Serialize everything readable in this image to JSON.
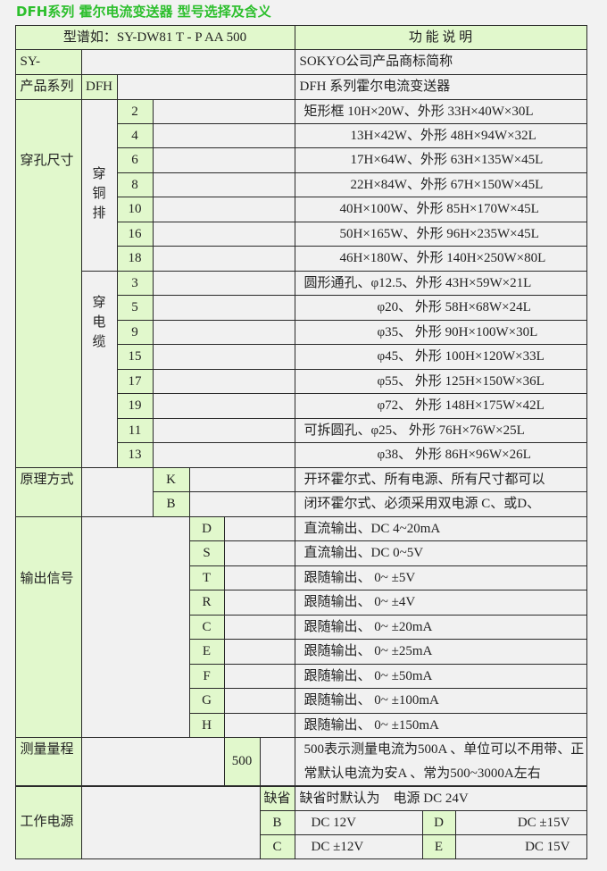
{
  "title": "DFH系列 霍尔电流变送器 型号选择及含义",
  "colors": {
    "title": "#2cbf2c",
    "label_cell": "#e1f8cc",
    "value_cell": "#f1f1f1"
  },
  "header": {
    "model_example": "型谱如：SY-DW81 T - P AA 500",
    "function": "功 能 说 明"
  },
  "sy": {
    "code": "SY-",
    "desc": "SOKYO公司产品商标简称"
  },
  "series": {
    "label": "产品系列",
    "code": "DFH",
    "desc": "DFH 系列霍尔电流变送器"
  },
  "hole": {
    "label": "穿孔尺寸",
    "busbar": {
      "label": "穿铜排",
      "rows": [
        {
          "code": "2",
          "desc": "矩形框 10H×20W、外形 33H×40W×30L"
        },
        {
          "code": "4",
          "desc": "13H×42W、外形 48H×94W×32L"
        },
        {
          "code": "6",
          "desc": "17H×64W、外形 63H×135W×45L"
        },
        {
          "code": "8",
          "desc": "22H×84W、外形 67H×150W×45L"
        },
        {
          "code": "10",
          "desc": "40H×100W、外形 85H×170W×45L"
        },
        {
          "code": "16",
          "desc": "50H×165W、外形 96H×235W×45L"
        },
        {
          "code": "18",
          "desc": "46H×180W、外形 140H×250W×80L"
        }
      ]
    },
    "cable": {
      "label": "穿电缆",
      "rows": [
        {
          "code": "3",
          "desc": "圆形通孔、φ12.5、外形 43H×59W×21L"
        },
        {
          "code": "5",
          "desc": "φ20、  外形 58H×68W×24L"
        },
        {
          "code": "9",
          "desc": "φ35、  外形 90H×100W×30L"
        },
        {
          "code": "15",
          "desc": "φ45、  外形 100H×120W×33L"
        },
        {
          "code": "17",
          "desc": "φ55、  外形 125H×150W×36L"
        },
        {
          "code": "19",
          "desc": "φ72、  外形 148H×175W×42L"
        },
        {
          "code": "11",
          "desc": "可拆圆孔、φ25、  外形 76H×76W×25L"
        },
        {
          "code": "13",
          "desc": "φ38、  外形 86H×96W×26L"
        }
      ]
    }
  },
  "principle": {
    "label": "原理方式",
    "rows": [
      {
        "code": "K",
        "desc": "开环霍尔式、所有电源、所有尺寸都可以"
      },
      {
        "code": "B",
        "desc": "闭环霍尔式、必须采用双电源 C、或D、"
      }
    ]
  },
  "output": {
    "label": "输出信号",
    "rows": [
      {
        "code": "D",
        "desc": "直流输出、DC 4~20mA"
      },
      {
        "code": "S",
        "desc": "直流输出、DC 0~5V"
      },
      {
        "code": "T",
        "desc": "跟随输出、 0~ ±5V"
      },
      {
        "code": "R",
        "desc": "跟随输出、 0~ ±4V"
      },
      {
        "code": "C",
        "desc": "跟随输出、 0~ ±20mA"
      },
      {
        "code": "E",
        "desc": "跟随输出、 0~ ±25mA"
      },
      {
        "code": "F",
        "desc": "跟随输出、 0~ ±50mA"
      },
      {
        "code": "G",
        "desc": "跟随输出、 0~ ±100mA"
      },
      {
        "code": "H",
        "desc": "跟随输出、 0~ ±150mA"
      }
    ]
  },
  "range": {
    "label": "测量量程",
    "code": "500",
    "desc": "500表示测量电流为500A 、单位可以不用带、正常默认电流为安A 、常为500~3000A左右"
  },
  "power": {
    "label": "工作电源",
    "default_code": "缺省",
    "default_desc": "缺省时默认为　电源 DC 24V",
    "options": [
      {
        "code": "B",
        "desc": "DC  12V"
      },
      {
        "code": "D",
        "desc": "DC  ±15V"
      },
      {
        "code": "C",
        "desc": "DC  ±12V"
      },
      {
        "code": "E",
        "desc": "DC  15V"
      }
    ]
  }
}
